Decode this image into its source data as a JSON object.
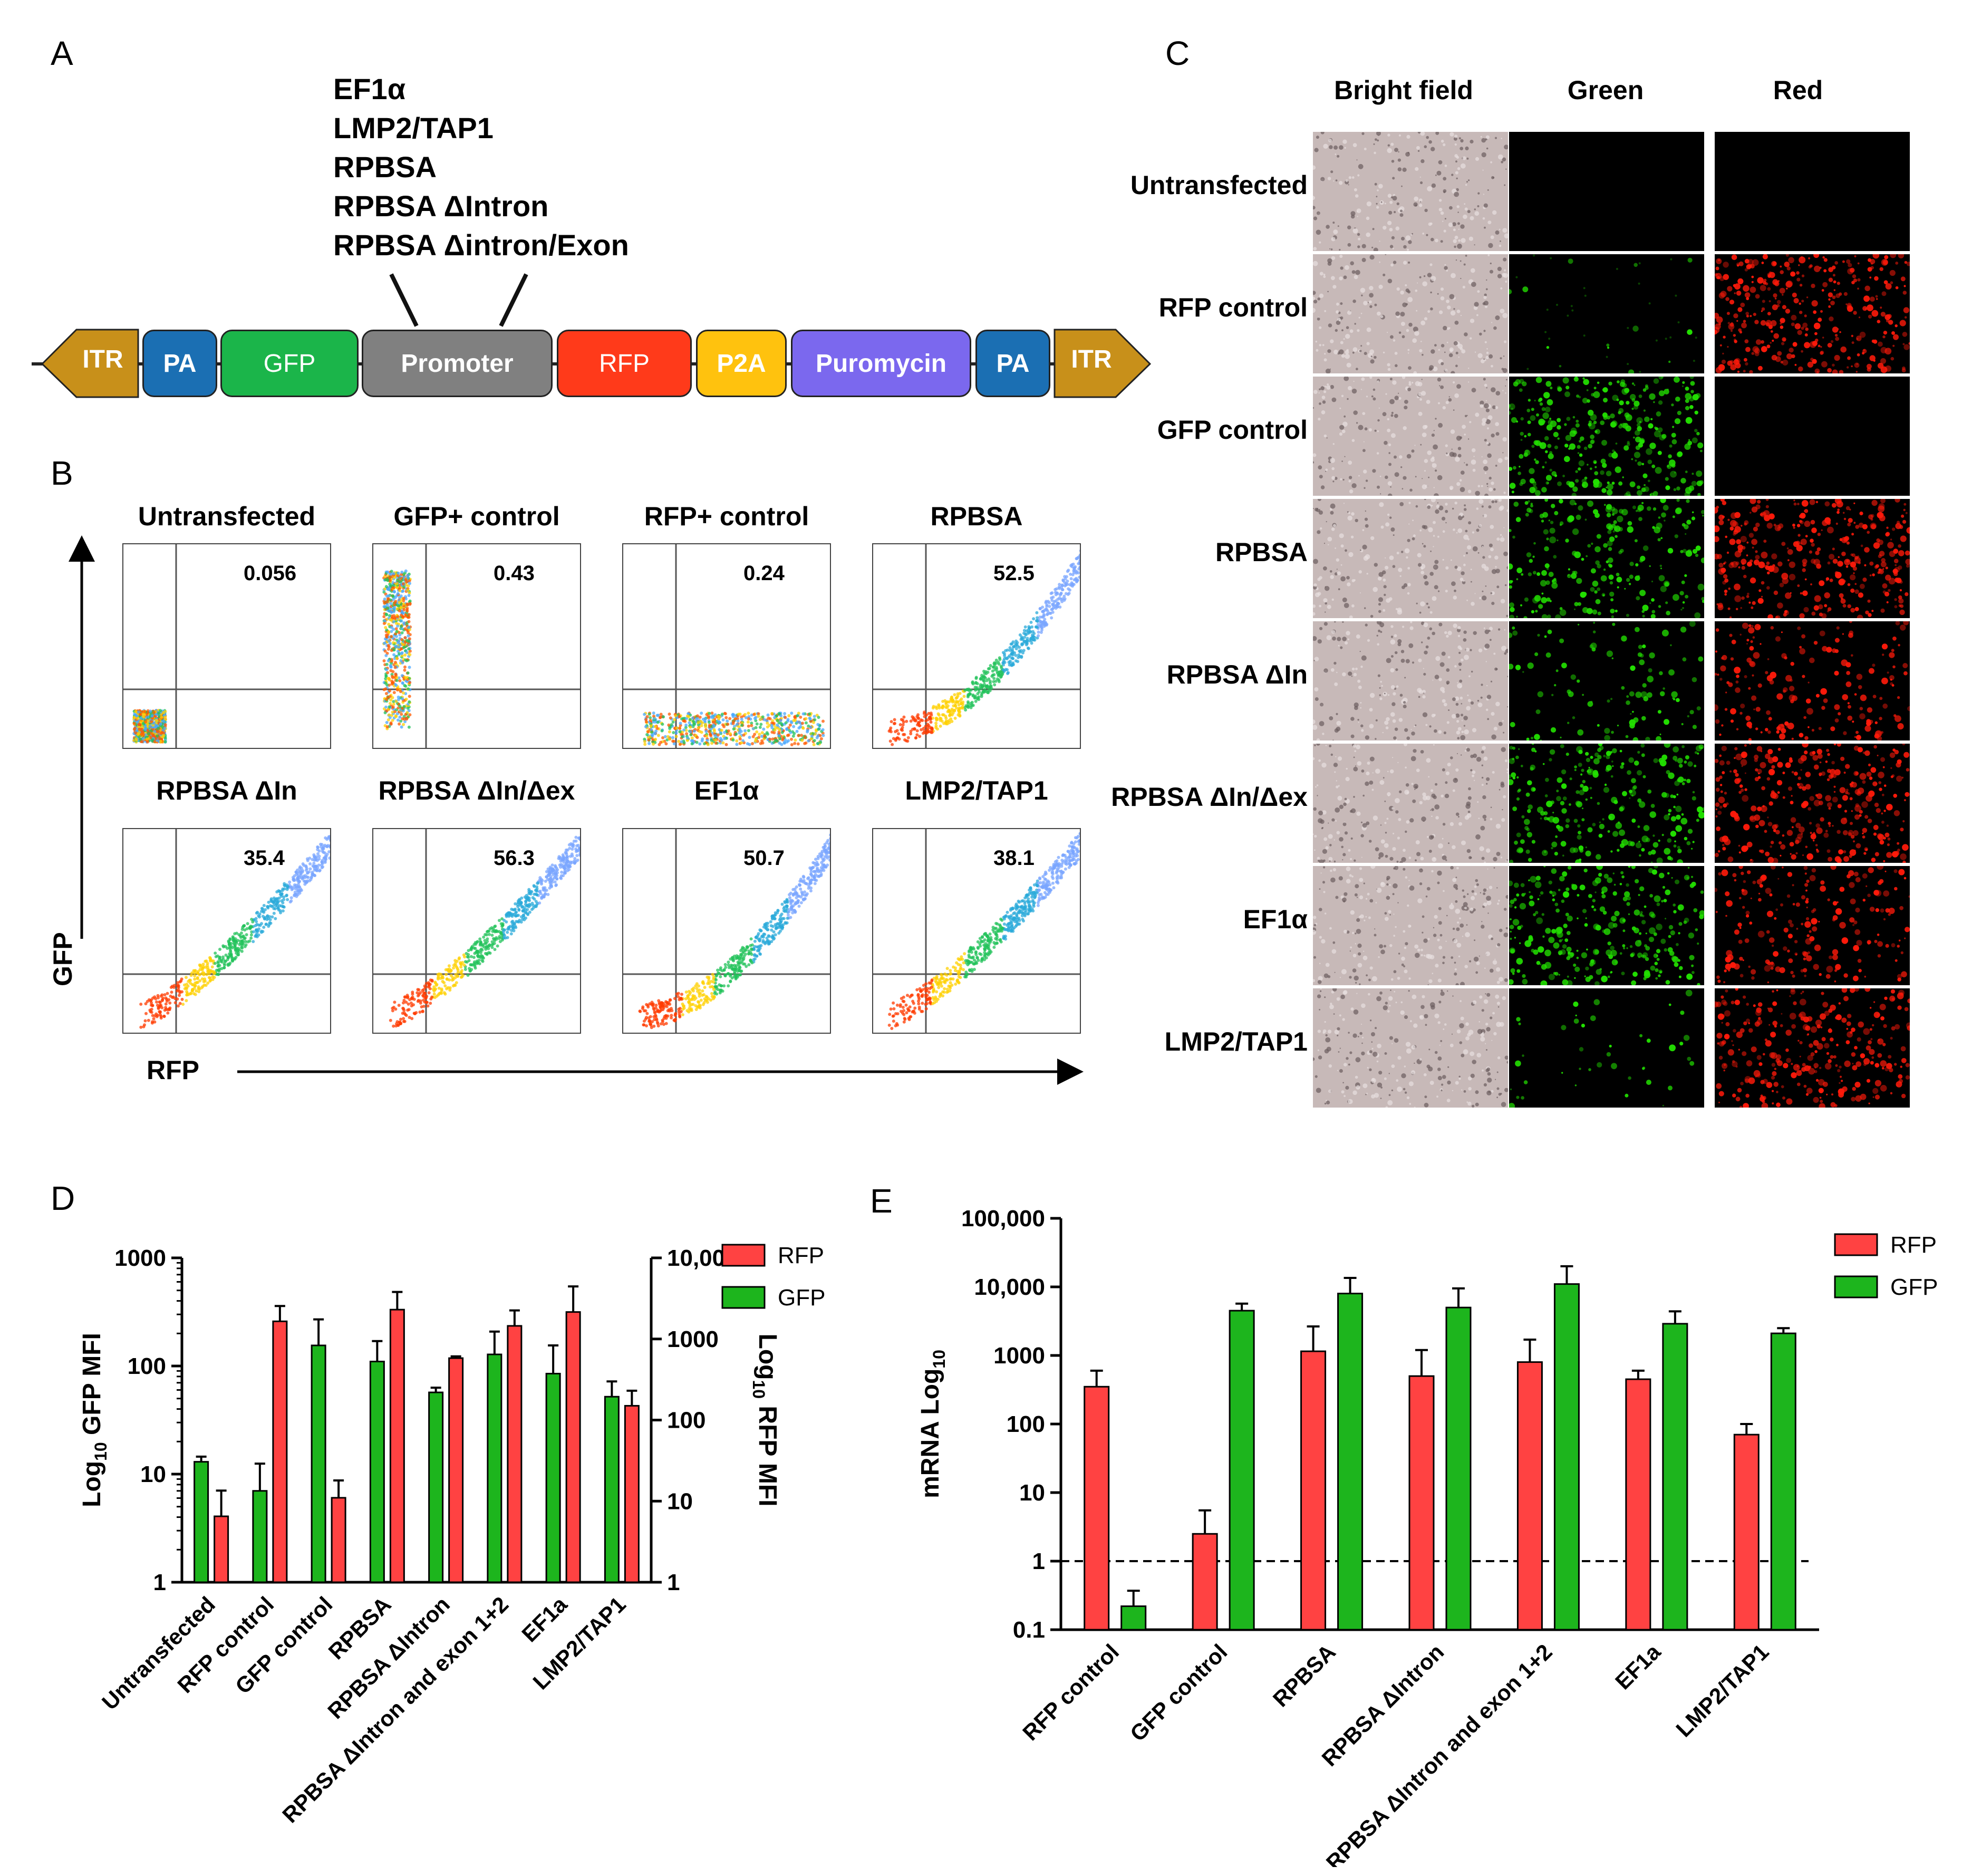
{
  "panels": {
    "a": "A",
    "b": "B",
    "c": "C",
    "d": "D",
    "e": "E"
  },
  "construct": {
    "promoters": [
      "EF1α",
      "LMP2/TAP1",
      "RPBSA",
      "RPBSA ΔIntron",
      "RPBSA Δintron/Exon"
    ],
    "segments": [
      {
        "label": "ITR",
        "color": "#c8901a"
      },
      {
        "label": "PA",
        "color": "#1b6fb3"
      },
      {
        "label": "GFP",
        "color": "#1bb54a"
      },
      {
        "label": "Promoter",
        "color": "#808080"
      },
      {
        "label": "RFP",
        "color": "#ff3a1a"
      },
      {
        "label": "P2A",
        "color": "#ffc20e"
      },
      {
        "label": "Puromycin",
        "color": "#7b68ee"
      },
      {
        "label": "PA",
        "color": "#1b6fb3"
      },
      {
        "label": "ITR",
        "color": "#c8901a"
      }
    ]
  },
  "flow": {
    "y_axis": "GFP",
    "x_axis": "RFP",
    "plots": [
      {
        "title": "Untransfected",
        "value": "0.056"
      },
      {
        "title": "GFP+ control",
        "value": "0.43"
      },
      {
        "title": "RFP+ control",
        "value": "0.24"
      },
      {
        "title": "RPBSA",
        "value": "52.5"
      },
      {
        "title": "RPBSA ΔIn",
        "value": "35.4"
      },
      {
        "title": "RPBSA ΔIn/Δex",
        "value": "56.3"
      },
      {
        "title": "EF1α",
        "value": "50.7"
      },
      {
        "title": "LMP2/TAP1",
        "value": "38.1"
      }
    ]
  },
  "microscopy": {
    "columns": [
      "Bright field",
      "Green",
      "Red"
    ],
    "rows": [
      {
        "label": "Untransfected",
        "green": 0.0,
        "red": 0.0
      },
      {
        "label": "RFP control",
        "green": 0.03,
        "red": 0.85
      },
      {
        "label": "GFP control",
        "green": 0.8,
        "red": 0.0
      },
      {
        "label": "RPBSA",
        "green": 0.6,
        "red": 0.85
      },
      {
        "label": "RPBSA ΔIn",
        "green": 0.25,
        "red": 0.45
      },
      {
        "label": "RPBSA ΔIn/Δex",
        "green": 0.65,
        "red": 0.8
      },
      {
        "label": "EF1α",
        "green": 0.7,
        "red": 0.5
      },
      {
        "label": "LMP2/TAP1",
        "green": 0.1,
        "red": 0.7
      }
    ],
    "colors": {
      "green": "#22e000",
      "red": "#ff1a0a"
    }
  },
  "chart_data": [
    {
      "type": "bar",
      "categories": [
        "Untransfected",
        "RFP control",
        "GFP control",
        "RPBSA",
        "RPBSA ΔIntron",
        "RPBSA ΔIntron and exon 1+2",
        "EF1a",
        "LMP2/TAP1"
      ],
      "ylabel_left": "Log10 GFP MFI",
      "ylabel_right": "Log10 RFP MFI",
      "yscale": "log",
      "ylim_left": [
        1,
        1000
      ],
      "ylim_right": [
        1,
        10000
      ],
      "yticks_left": [
        "1",
        "10",
        "100",
        "1000"
      ],
      "yticks_right": [
        "1",
        "10",
        "100",
        "1000",
        "10,000"
      ],
      "legend": [
        "RFP",
        "GFP"
      ],
      "legend_position": "top-right",
      "series": [
        {
          "name": "GFP",
          "axis": "left",
          "color": "#1db51d",
          "values": [
            13,
            7,
            155,
            110,
            57,
            128,
            85,
            52
          ],
          "errors": [
            1.5,
            5.5,
            115,
            60,
            6,
            80,
            70,
            20
          ]
        },
        {
          "name": "RFP",
          "axis": "right",
          "color": "#ff4242",
          "values": [
            6.5,
            1650,
            11,
            2300,
            580,
            1450,
            2150,
            150
          ],
          "errors": [
            7,
            900,
            7,
            1500,
            30,
            800,
            2300,
            80
          ]
        }
      ]
    },
    {
      "type": "bar",
      "categories": [
        "RFP control",
        "GFP control",
        "RPBSA",
        "RPBSA ΔIntron",
        "RPBSA ΔIntron and exon 1+2",
        "EF1a",
        "LMP2/TAP1"
      ],
      "ylabel": "mRNA Log10",
      "yscale": "log",
      "ylim": [
        0.1,
        100000
      ],
      "yticks": [
        "0.1",
        "1",
        "10",
        "100",
        "1000",
        "10,000",
        "100,000"
      ],
      "reference_line": 1,
      "legend": [
        "RFP",
        "GFP"
      ],
      "legend_position": "top-right",
      "series": [
        {
          "name": "RFP",
          "color": "#ff4242",
          "values": [
            350,
            2.5,
            1150,
            500,
            800,
            450,
            70
          ],
          "errors": [
            250,
            3,
            1500,
            700,
            900,
            150,
            30
          ]
        },
        {
          "name": "GFP",
          "color": "#1db51d",
          "values": [
            0.22,
            4500,
            8000,
            5000,
            11000,
            2900,
            2100
          ],
          "errors": [
            0.15,
            1200,
            5500,
            4500,
            9000,
            1500,
            400
          ]
        }
      ]
    }
  ]
}
